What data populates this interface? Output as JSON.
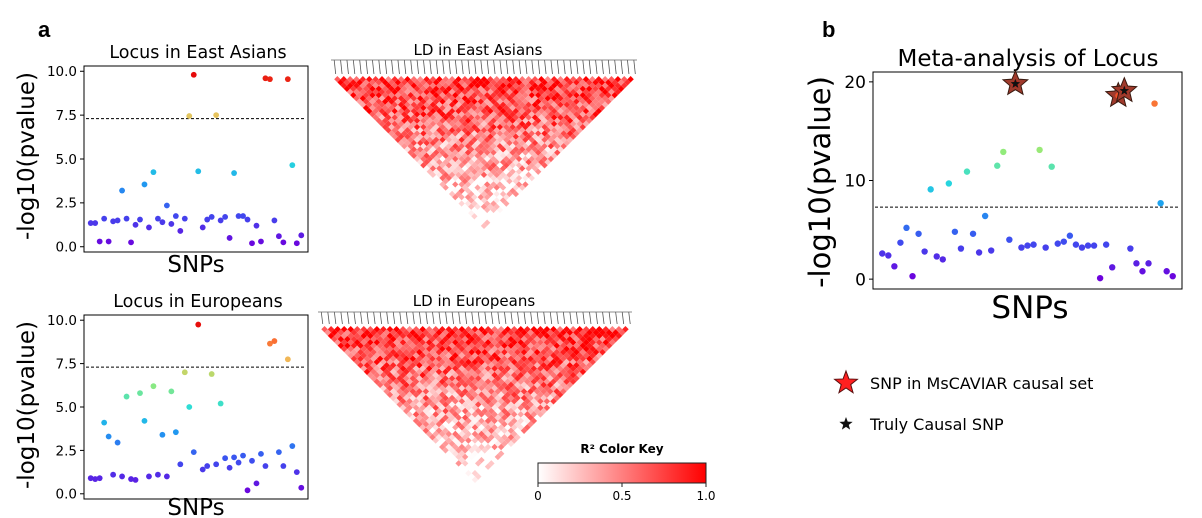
{
  "panel_labels": {
    "a": "a",
    "b": "b"
  },
  "chart_data": [
    {
      "id": "ea",
      "type": "scatter",
      "title": "Locus in East Asians",
      "xlabel": "SNPs",
      "ylabel": "-log10(pvalue)",
      "ylim": [
        -0.3,
        10.3
      ],
      "yticks": [
        0.0,
        2.5,
        5.0,
        7.5,
        10.0
      ],
      "ytick_labels": [
        "0.0",
        "2.5",
        "5.0",
        "7.5",
        "10.0"
      ],
      "threshold": 7.3,
      "grid": false,
      "series": [
        {
          "points": [
            [
              1,
              1.35
            ],
            [
              2,
              1.35
            ],
            [
              3,
              0.3
            ],
            [
              4,
              1.6
            ],
            [
              5,
              0.3
            ],
            [
              6,
              1.45
            ],
            [
              7,
              1.5
            ],
            [
              8,
              3.2
            ],
            [
              9,
              1.6
            ],
            [
              10,
              0.25
            ],
            [
              11,
              1.25
            ],
            [
              12,
              1.55
            ],
            [
              13,
              3.55
            ],
            [
              14,
              1.1
            ],
            [
              15,
              4.25
            ],
            [
              16,
              1.6
            ],
            [
              17,
              1.4
            ],
            [
              18,
              2.35
            ],
            [
              19,
              1.3
            ],
            [
              20,
              1.75
            ],
            [
              21,
              0.9
            ],
            [
              22,
              1.6
            ],
            [
              23,
              7.45
            ],
            [
              24,
              9.8
            ],
            [
              25,
              4.3
            ],
            [
              26,
              1.1
            ],
            [
              27,
              1.55
            ],
            [
              28,
              1.7
            ],
            [
              29,
              7.5
            ],
            [
              30,
              1.5
            ],
            [
              31,
              1.7
            ],
            [
              32,
              0.5
            ],
            [
              33,
              4.2
            ],
            [
              34,
              1.75
            ],
            [
              35,
              1.75
            ],
            [
              36,
              1.55
            ],
            [
              37,
              0.2
            ],
            [
              38,
              1.2
            ],
            [
              39,
              0.3
            ],
            [
              40,
              9.6
            ],
            [
              41,
              9.55
            ],
            [
              42,
              1.5
            ],
            [
              43,
              0.6
            ],
            [
              44,
              0.25
            ],
            [
              45,
              9.55
            ],
            [
              46,
              4.65
            ],
            [
              47,
              0.2
            ],
            [
              48,
              0.65
            ]
          ]
        }
      ]
    },
    {
      "id": "eu",
      "type": "scatter",
      "title": "Locus in Europeans",
      "xlabel": "SNPs",
      "ylabel": "-log10(pvalue)",
      "ylim": [
        -0.3,
        10.3
      ],
      "yticks": [
        0.0,
        2.5,
        5.0,
        7.5,
        10.0
      ],
      "ytick_labels": [
        "0.0",
        "2.5",
        "5.0",
        "7.5",
        "10.0"
      ],
      "threshold": 7.3,
      "grid": false,
      "series": [
        {
          "points": [
            [
              1,
              0.9
            ],
            [
              2,
              0.85
            ],
            [
              3,
              0.9
            ],
            [
              4,
              4.1
            ],
            [
              5,
              3.3
            ],
            [
              6,
              1.1
            ],
            [
              7,
              2.95
            ],
            [
              8,
              1.0
            ],
            [
              9,
              5.6
            ],
            [
              10,
              0.85
            ],
            [
              11,
              0.8
            ],
            [
              12,
              5.8
            ],
            [
              13,
              4.2
            ],
            [
              14,
              1.0
            ],
            [
              15,
              6.2
            ],
            [
              16,
              1.1
            ],
            [
              17,
              3.4
            ],
            [
              18,
              1.0
            ],
            [
              19,
              5.9
            ],
            [
              20,
              3.55
            ],
            [
              21,
              1.7
            ],
            [
              22,
              7.0
            ],
            [
              23,
              5.0
            ],
            [
              24,
              2.4
            ],
            [
              25,
              9.75
            ],
            [
              26,
              1.4
            ],
            [
              27,
              1.6
            ],
            [
              28,
              6.9
            ],
            [
              29,
              1.7
            ],
            [
              30,
              5.2
            ],
            [
              31,
              2.05
            ],
            [
              32,
              1.5
            ],
            [
              33,
              2.1
            ],
            [
              34,
              1.8
            ],
            [
              35,
              2.2
            ],
            [
              36,
              0.2
            ],
            [
              37,
              1.9
            ],
            [
              38,
              0.6
            ],
            [
              39,
              2.3
            ],
            [
              40,
              1.6
            ],
            [
              41,
              8.65
            ],
            [
              42,
              8.8
            ],
            [
              43,
              2.4
            ],
            [
              44,
              1.6
            ],
            [
              45,
              7.75
            ],
            [
              46,
              2.75
            ],
            [
              47,
              1.25
            ],
            [
              48,
              0.35
            ]
          ]
        }
      ]
    },
    {
      "id": "meta",
      "type": "scatter",
      "title": "Meta-analysis of Locus",
      "xlabel": "SNPs",
      "ylabel": "-log10(pvalue)",
      "ylim": [
        -1,
        21
      ],
      "yticks": [
        0,
        10,
        20
      ],
      "ytick_labels": [
        "0",
        "10",
        "20"
      ],
      "threshold": 7.3,
      "grid": false,
      "series": [
        {
          "points": [
            [
              1,
              2.6
            ],
            [
              2,
              2.4
            ],
            [
              3,
              1.3
            ],
            [
              4,
              3.7
            ],
            [
              5,
              5.2
            ],
            [
              6,
              0.3
            ],
            [
              7,
              4.6
            ],
            [
              8,
              2.8
            ],
            [
              9,
              9.1
            ],
            [
              10,
              2.3
            ],
            [
              11,
              2.0
            ],
            [
              12,
              9.7
            ],
            [
              13,
              4.8
            ],
            [
              14,
              3.1
            ],
            [
              15,
              10.9
            ],
            [
              16,
              4.6
            ],
            [
              17,
              2.7
            ],
            [
              18,
              6.4
            ],
            [
              19,
              2.9
            ],
            [
              20,
              11.5
            ],
            [
              21,
              12.9
            ],
            [
              22,
              4.0
            ],
            [
              23,
              19.8
            ],
            [
              24,
              3.2
            ],
            [
              25,
              3.4
            ],
            [
              26,
              3.5
            ],
            [
              27,
              13.1
            ],
            [
              28,
              3.2
            ],
            [
              29,
              11.4
            ],
            [
              30,
              3.6
            ],
            [
              31,
              3.8
            ],
            [
              32,
              4.4
            ],
            [
              33,
              3.5
            ],
            [
              34,
              3.2
            ],
            [
              35,
              3.4
            ],
            [
              36,
              3.4
            ],
            [
              37,
              0.1
            ],
            [
              38,
              3.5
            ],
            [
              39,
              1.2
            ],
            [
              40,
              18.6
            ],
            [
              41,
              19.1
            ],
            [
              42,
              3.1
            ],
            [
              43,
              1.6
            ],
            [
              44,
              0.8
            ],
            [
              45,
              1.6
            ],
            [
              46,
              17.8
            ],
            [
              47,
              7.7
            ],
            [
              48,
              0.8
            ],
            [
              49,
              0.3
            ]
          ]
        }
      ],
      "mscaviar_set_x": [
        23,
        40,
        41
      ],
      "truly_causal_x": [
        23,
        41
      ]
    },
    {
      "id": "ld_ea",
      "type": "heatmap",
      "title": "LD in East Asians",
      "n_snps": 48,
      "seed": 7
    },
    {
      "id": "ld_eu",
      "type": "heatmap",
      "title": "LD in Europeans",
      "n_snps": 48,
      "seed": 19
    }
  ],
  "color_key": {
    "title": "R² Color Key",
    "ticks": [
      "0",
      "0.5",
      "1.0"
    ],
    "low_color": "#ffffff",
    "high_color": "#ff0000"
  },
  "legend": {
    "items": [
      {
        "label": "SNP in MsCAVIAR causal set",
        "marker": "red-star-icon",
        "color": "#ff2020"
      },
      {
        "label": "Truly Causal SNP",
        "marker": "black-star-icon",
        "color": "#111111"
      }
    ]
  }
}
